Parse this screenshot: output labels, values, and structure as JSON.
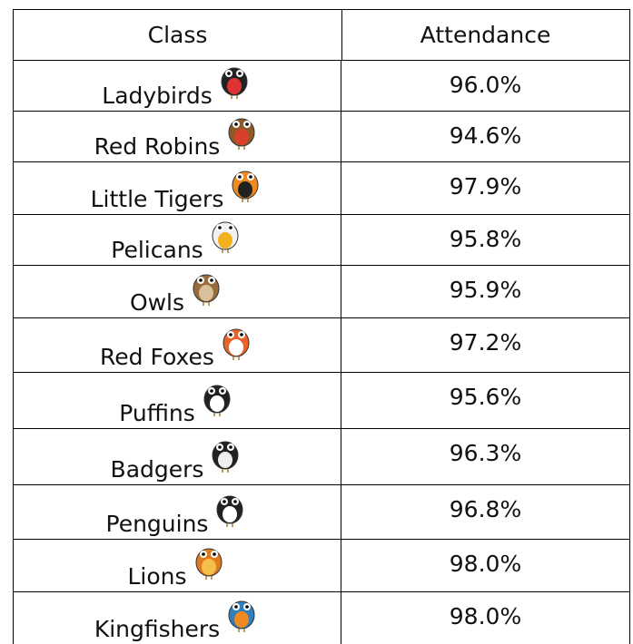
{
  "table": {
    "header": [
      "Class",
      "Attendance"
    ],
    "rows": [
      [
        "Ladybirds",
        "96.0%"
      ],
      [
        "Red Robins",
        "94.6%"
      ],
      [
        "Little Tigers",
        "97.9%"
      ],
      [
        "Pelicans",
        "95.8%"
      ],
      [
        "Owls",
        "95.9%"
      ],
      [
        "Red Foxes",
        "97.2%"
      ],
      [
        "Puffins",
        "95.6%"
      ],
      [
        "Badgers",
        "96.3%"
      ],
      [
        "Penguins",
        "96.8%"
      ],
      [
        "Lions",
        "98.0%"
      ],
      [
        "Kingfishers",
        "98.0%"
      ]
    ]
  }
}
